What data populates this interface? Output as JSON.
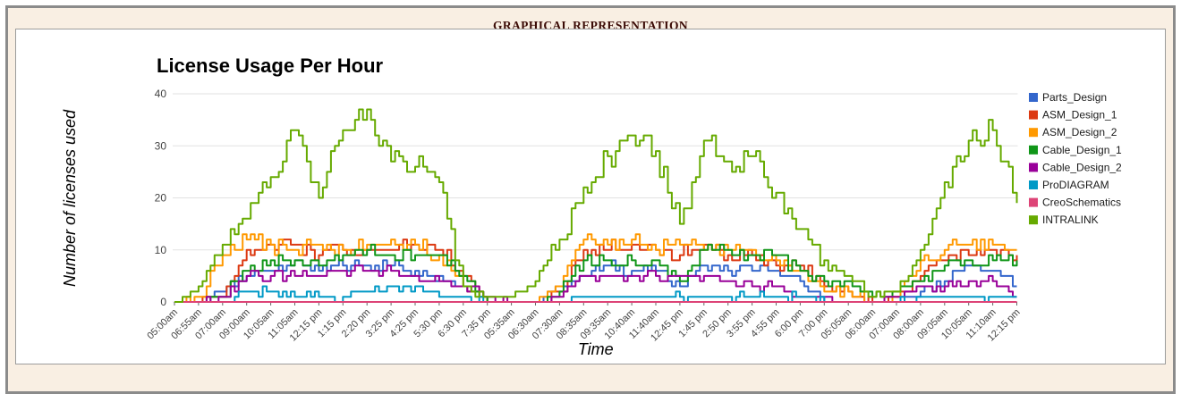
{
  "header": {
    "title": "GRAPHICAL REPRESENTATION"
  },
  "chart_data": {
    "type": "line",
    "interpolation": "step",
    "title": "License Usage Per Hour",
    "xlabel": "Time",
    "ylabel": "Number of licenses used",
    "ylim": [
      0,
      40
    ],
    "yticks": [
      0,
      10,
      20,
      30,
      40
    ],
    "grid": true,
    "legend_position": "right",
    "categories": [
      "05:00am",
      "06:55am",
      "07:00am",
      "09:00am",
      "10:05am",
      "11:05am",
      "12:15 pm",
      "1:15 pm",
      "2:20 pm",
      "3:25 pm",
      "4:25 pm",
      "5:30 pm",
      "6:30 pm",
      "7:35 pm",
      "05:35am",
      "06:30am",
      "07:30am",
      "08:35am",
      "09:35am",
      "10:40am",
      "11:40am",
      "12:45 pm",
      "1:45 pm",
      "2:50 pm",
      "3:55 pm",
      "4:55 pm",
      "6:00 pm",
      "7:00 pm",
      "05:05am",
      "06:00am",
      "07:00am",
      "08:00am",
      "09:05am",
      "10:05am",
      "11:10am",
      "12:15 pm"
    ],
    "series": [
      {
        "name": "Parts_Design",
        "color": "#3366CC",
        "values": [
          0,
          0,
          2,
          5,
          6,
          8,
          6,
          7,
          7,
          7,
          6,
          5,
          3,
          0,
          0,
          0,
          3,
          5,
          7,
          6,
          6,
          3,
          7,
          6,
          6,
          6,
          4,
          0,
          0,
          0,
          0,
          2,
          4,
          7,
          6,
          3
        ]
      },
      {
        "name": "ASM_Design_1",
        "color": "#DC3912",
        "values": [
          0,
          0,
          1,
          10,
          11,
          11,
          9,
          10,
          10,
          10,
          11,
          10,
          5,
          0,
          0,
          0,
          2,
          10,
          10,
          11,
          10,
          9,
          11,
          9,
          9,
          7,
          7,
          3,
          2,
          0,
          1,
          5,
          8,
          9,
          10,
          9
        ]
      },
      {
        "name": "ASM_Design_2",
        "color": "#FF9900",
        "values": [
          0,
          1,
          9,
          12,
          11,
          10,
          11,
          10,
          11,
          12,
          11,
          9,
          3,
          0,
          0,
          0,
          3,
          12,
          11,
          12,
          10,
          11,
          10,
          10,
          10,
          8,
          6,
          2,
          2,
          0,
          1,
          8,
          10,
          11,
          11,
          10
        ]
      },
      {
        "name": "Cable_Design_1",
        "color": "#109618",
        "values": [
          0,
          0,
          1,
          6,
          8,
          8,
          7,
          9,
          10,
          9,
          9,
          9,
          5,
          0,
          0,
          0,
          2,
          8,
          8,
          8,
          8,
          4,
          10,
          10,
          9,
          9,
          6,
          4,
          4,
          1,
          2,
          4,
          7,
          8,
          8,
          8
        ]
      },
      {
        "name": "Cable_Design_2",
        "color": "#990099",
        "values": [
          0,
          0,
          1,
          5,
          5,
          5,
          5,
          6,
          6,
          6,
          5,
          4,
          3,
          1,
          0,
          0,
          1,
          5,
          5,
          5,
          5,
          5,
          5,
          4,
          3,
          3,
          1,
          1,
          0,
          0,
          1,
          3,
          3,
          4,
          4,
          1
        ]
      },
      {
        "name": "ProDIAGRAM",
        "color": "#0099C6",
        "values": [
          0,
          0,
          0,
          2,
          2,
          1,
          1,
          1,
          2,
          3,
          3,
          1,
          1,
          0,
          0,
          0,
          0,
          1,
          1,
          1,
          1,
          1,
          1,
          1,
          1,
          1,
          1,
          0,
          0,
          0,
          0,
          1,
          1,
          1,
          1,
          1
        ]
      },
      {
        "name": "CreoSchematics",
        "color": "#DD4477",
        "values": [
          0,
          0,
          0,
          0,
          0,
          0,
          0,
          0,
          0,
          0,
          0,
          0,
          0,
          0,
          0,
          0,
          0,
          0,
          0,
          0,
          0,
          0,
          0,
          0,
          0,
          0,
          0,
          0,
          0,
          0,
          0,
          0,
          0,
          0,
          0,
          0
        ]
      },
      {
        "name": "INTRALINK",
        "color": "#66AA00",
        "values": [
          0,
          3,
          11,
          16,
          24,
          33,
          20,
          33,
          37,
          27,
          26,
          23,
          3,
          1,
          1,
          4,
          12,
          22,
          28,
          32,
          29,
          15,
          31,
          27,
          28,
          21,
          14,
          8,
          5,
          1,
          2,
          10,
          23,
          31,
          33,
          19
        ]
      }
    ]
  }
}
